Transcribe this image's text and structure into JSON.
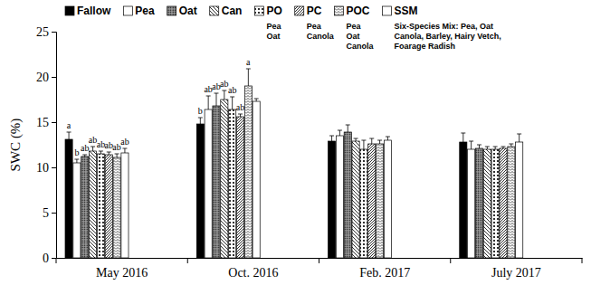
{
  "chart_data": {
    "type": "bar",
    "y_label": "SWC (%)",
    "categories": [
      "May 2016",
      "Oct. 2016",
      "Feb. 2017",
      "July 2017"
    ],
    "ylim": [
      0,
      25
    ],
    "yticks": [
      0,
      5,
      10,
      15,
      20,
      25
    ],
    "grid": false,
    "legend": "top",
    "series": [
      {
        "name": "Fallow",
        "color": "#000000",
        "values": [
          13.1,
          14.8,
          12.9,
          12.8
        ],
        "errors": [
          0.8,
          0.7,
          0.6,
          1.0
        ],
        "letters": [
          "a",
          "b",
          null,
          null
        ]
      },
      {
        "name": "Pea",
        "color": "#ffffff",
        "values": [
          10.5,
          16.4,
          13.5,
          12.0
        ],
        "errors": [
          0.4,
          1.5,
          0.6,
          0.9
        ],
        "letters": [
          "b",
          "ab",
          null,
          null
        ]
      },
      {
        "name": "Oat",
        "color": "#a0a0a0",
        "values": [
          11.2,
          16.8,
          13.9,
          12.1
        ],
        "errors": [
          0.2,
          1.4,
          0.8,
          0.4
        ],
        "letters": [
          "ab",
          "ab",
          null,
          null
        ]
      },
      {
        "name": "Can",
        "color": "#ffffff",
        "values": [
          11.8,
          17.5,
          12.9,
          12.0
        ],
        "errors": [
          0.5,
          1.0,
          0.3,
          0.3
        ],
        "letters": [
          "ab",
          "ab",
          null,
          null
        ]
      },
      {
        "name": "PO",
        "color": "#ffffff",
        "values": [
          11.5,
          16.4,
          12.0,
          12.0
        ],
        "errors": [
          0.3,
          1.4,
          1.0,
          0.3
        ],
        "letters": [
          "ab",
          "ab",
          null,
          null
        ],
        "note": [
          "Pea",
          "Oat"
        ]
      },
      {
        "name": "PC",
        "color": "#ffffff",
        "values": [
          11.4,
          15.6,
          12.6,
          12.1
        ],
        "errors": [
          0.3,
          0.3,
          0.6,
          0.2
        ],
        "letters": [
          "ab",
          "ab",
          null,
          null
        ],
        "note": [
          "Pea",
          "Canola"
        ]
      },
      {
        "name": "POC",
        "color": "#ffffff",
        "values": [
          11.1,
          19.0,
          12.6,
          12.3
        ],
        "errors": [
          0.4,
          1.9,
          0.4,
          0.3
        ],
        "letters": [
          "ab",
          "a",
          null,
          null
        ],
        "note": [
          "Pea",
          "Oat",
          "Canola"
        ]
      },
      {
        "name": "SSM",
        "color": "#ffffff",
        "values": [
          11.6,
          17.3,
          13.0,
          12.8
        ],
        "errors": [
          0.5,
          0.3,
          0.4,
          0.9
        ],
        "letters": [
          "ab",
          null,
          null,
          null
        ],
        "note": [
          "Six-Species Mix: Pea, Oat",
          "Canola, Barley, Hairy Vetch,",
          "Foarage Radish"
        ]
      }
    ]
  }
}
